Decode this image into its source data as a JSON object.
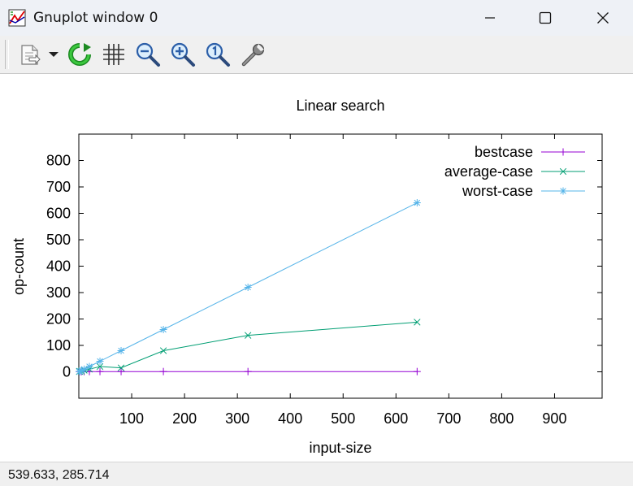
{
  "window": {
    "title": "Gnuplot window 0"
  },
  "toolbar": {
    "buttons": [
      {
        "name": "copy-export-icon"
      },
      {
        "name": "dropdown-arrow-icon"
      },
      {
        "name": "replot-icon"
      },
      {
        "name": "grid-icon"
      },
      {
        "name": "zoom-out-icon"
      },
      {
        "name": "zoom-in-icon"
      },
      {
        "name": "zoom-reset-icon"
      },
      {
        "name": "options-wrench-icon"
      }
    ]
  },
  "status": {
    "coords": "539.633,  285.714"
  },
  "chart_data": {
    "type": "line",
    "title": "Linear search",
    "xlabel": "input-size",
    "ylabel": "op-count",
    "xlim": [
      0,
      990
    ],
    "ylim": [
      -100,
      900
    ],
    "xticks": [
      100,
      200,
      300,
      400,
      500,
      600,
      700,
      800,
      900
    ],
    "yticks": [
      0,
      100,
      200,
      300,
      400,
      500,
      600,
      700,
      800
    ],
    "grid": false,
    "legend_position": "top-right",
    "series": [
      {
        "name": "bestcase",
        "color": "#9400d3",
        "marker": "plus",
        "x": [
          1,
          2,
          5,
          10,
          20,
          40,
          80,
          160,
          320,
          640
        ],
        "y": [
          1,
          1,
          1,
          1,
          1,
          1,
          1,
          1,
          1,
          1
        ]
      },
      {
        "name": "average-case",
        "color": "#009e73",
        "marker": "cross",
        "x": [
          1,
          2,
          5,
          10,
          20,
          40,
          80,
          160,
          320,
          640
        ],
        "y": [
          1,
          2,
          3,
          6,
          10,
          20,
          15,
          80,
          138,
          188
        ]
      },
      {
        "name": "worst-case",
        "color": "#56b4e9",
        "marker": "star",
        "x": [
          1,
          2,
          5,
          10,
          20,
          40,
          80,
          160,
          320,
          640
        ],
        "y": [
          1,
          2,
          5,
          10,
          20,
          40,
          80,
          160,
          320,
          640
        ]
      }
    ]
  }
}
